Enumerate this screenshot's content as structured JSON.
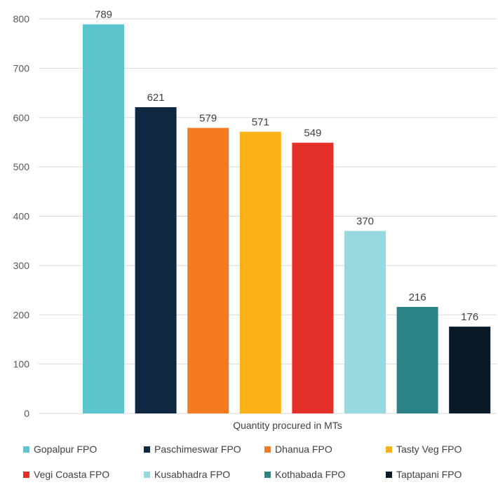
{
  "chart_data": {
    "type": "bar",
    "xlabel": "Quantity procured in MTs",
    "ylabel": "",
    "ylim": [
      0,
      800
    ],
    "yticks": [
      0,
      100,
      200,
      300,
      400,
      500,
      600,
      700,
      800
    ],
    "grid": true,
    "legend_position": "bottom",
    "series": [
      {
        "name": "Gopalpur FPO",
        "value": 789,
        "color": "#5bc4cc"
      },
      {
        "name": "Paschimeswar FPO",
        "value": 621,
        "color": "#0e2841"
      },
      {
        "name": "Dhanua FPO",
        "value": 579,
        "color": "#f47b20"
      },
      {
        "name": "Tasty Veg FPO",
        "value": 571,
        "color": "#fbb117"
      },
      {
        "name": "Vegi Coasta FPO",
        "value": 549,
        "color": "#e5302a"
      },
      {
        "name": "Kusabhadra FPO",
        "value": 370,
        "color": "#96d9de"
      },
      {
        "name": "Kothabada FPO",
        "value": 216,
        "color": "#2b8387"
      },
      {
        "name": "Taptapani FPO",
        "value": 176,
        "color": "#081a28"
      }
    ]
  }
}
